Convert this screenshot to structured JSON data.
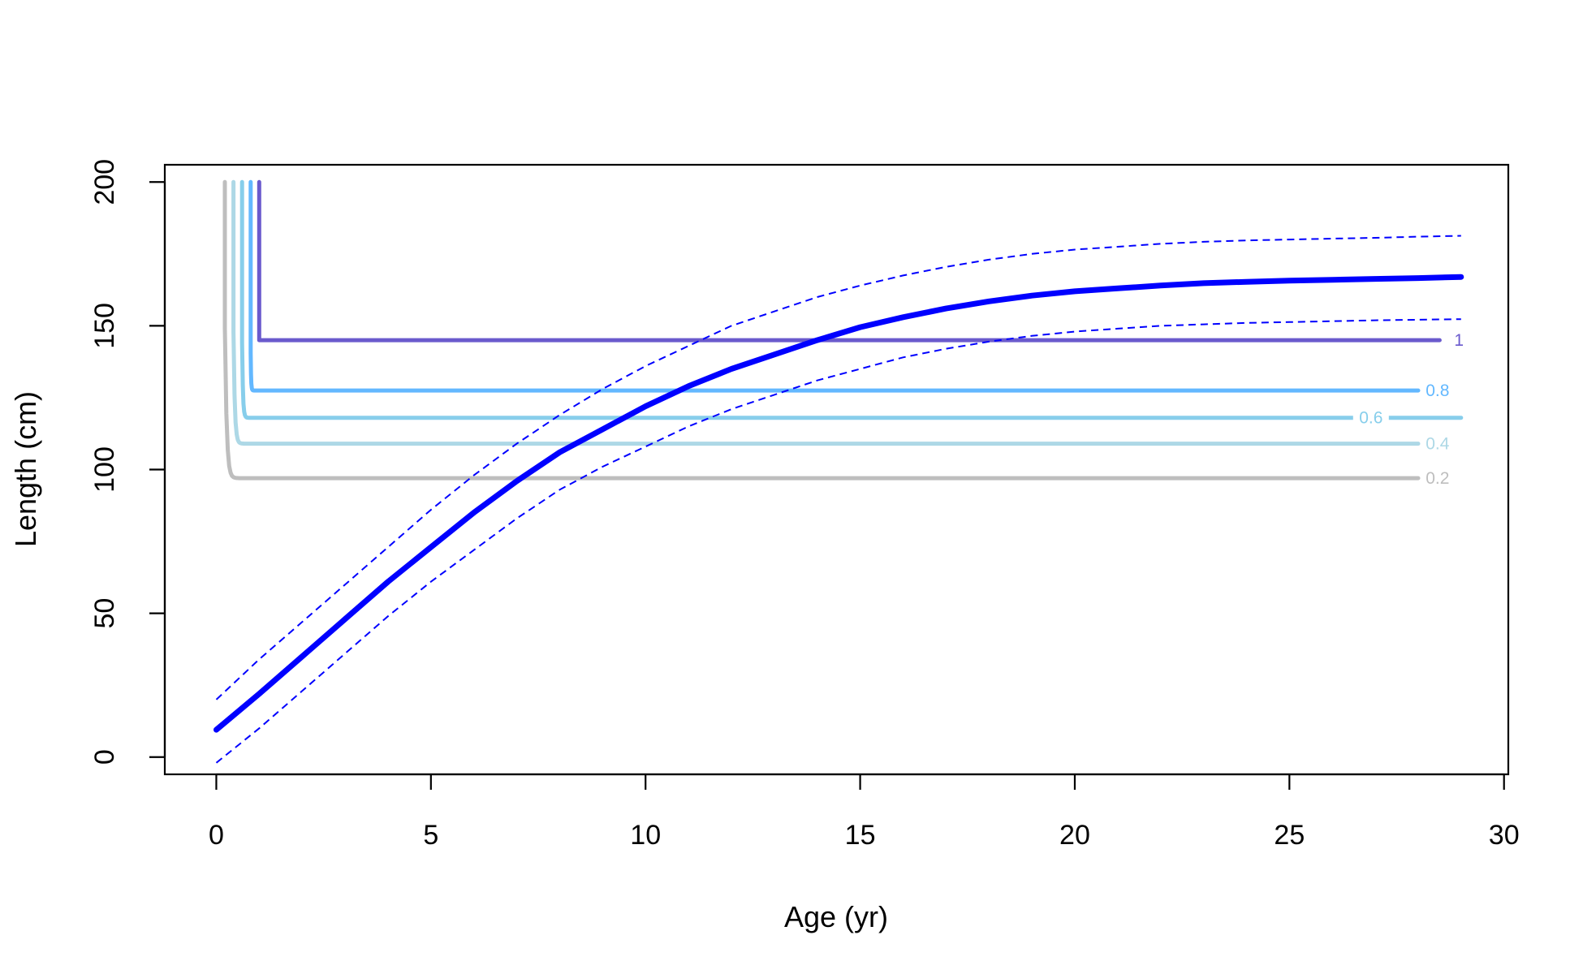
{
  "chart_data": {
    "type": "line",
    "title": "",
    "xlabel": "Age (yr)",
    "ylabel": "Length (cm)",
    "xlim": [
      -1.2,
      30.1
    ],
    "ylim": [
      -6,
      206
    ],
    "x_ticks": [
      0,
      5,
      10,
      15,
      20,
      25,
      30
    ],
    "y_ticks": [
      0,
      50,
      100,
      150,
      200
    ],
    "x_tick_labels": [
      "0",
      "5",
      "10",
      "15",
      "20",
      "25",
      "30"
    ],
    "y_tick_labels": [
      "0",
      "50",
      "100",
      "150",
      "200"
    ],
    "grid": false,
    "legend": "none",
    "growth_curve": {
      "color": "#0000ff",
      "x": [
        0,
        1,
        2,
        3,
        4,
        5,
        6,
        7,
        8,
        9,
        10,
        11,
        12,
        13,
        14,
        15,
        16,
        17,
        18,
        19,
        20,
        21,
        22,
        23,
        24,
        25,
        26,
        27,
        28,
        29
      ],
      "mean": [
        9.5,
        22,
        35,
        48,
        61,
        73,
        85,
        96,
        106,
        114,
        122,
        129,
        135,
        140,
        145,
        149.5,
        153,
        156,
        158.5,
        160.5,
        162,
        163,
        164,
        164.8,
        165.3,
        165.7,
        166,
        166.3,
        166.6,
        167
      ],
      "upper": [
        20,
        34,
        47,
        60,
        73,
        86,
        98,
        109,
        119,
        128,
        136,
        143,
        150,
        155,
        160,
        164,
        167.5,
        170.5,
        173,
        175,
        176.5,
        177.5,
        178.5,
        179.2,
        179.7,
        180,
        180.3,
        180.6,
        181,
        181.3
      ],
      "lower": [
        -2,
        10,
        23,
        36,
        49,
        61,
        72,
        83,
        93,
        101,
        108,
        115,
        121,
        126,
        131,
        135,
        139,
        142,
        144.5,
        146.5,
        148,
        149,
        150,
        150.5,
        151,
        151.3,
        151.6,
        151.9,
        152.1,
        152.3
      ]
    },
    "contours": [
      {
        "level": "0.2",
        "label": "0.2",
        "color": "#bebebe",
        "x_vertical": 0.2,
        "x_corner": 1.0,
        "y_start": 200,
        "y_level": 97,
        "x_end": 28.0
      },
      {
        "level": "0.4",
        "label": "0.4",
        "color": "#add8e6",
        "x_vertical": 0.4,
        "x_corner": 1.0,
        "y_start": 200,
        "y_level": 109,
        "x_end": 28.0
      },
      {
        "level": "0.6",
        "label": "0.6",
        "color": "#87ceeb",
        "x_vertical": 0.6,
        "x_corner": 1.0,
        "y_start": 200,
        "y_level": 118,
        "x_end": 29.0
      },
      {
        "level": "0.8",
        "label": "0.8",
        "color": "#63b8ff",
        "x_vertical": 0.8,
        "x_corner": 1.0,
        "y_start": 200,
        "y_level": 127.5,
        "x_end": 28.0
      },
      {
        "level": "1",
        "label": "1",
        "color": "#6a5acd",
        "x_vertical": 1.0,
        "x_corner": 1.0,
        "y_start": 200,
        "y_level": 145,
        "x_end": 28.5
      }
    ]
  }
}
